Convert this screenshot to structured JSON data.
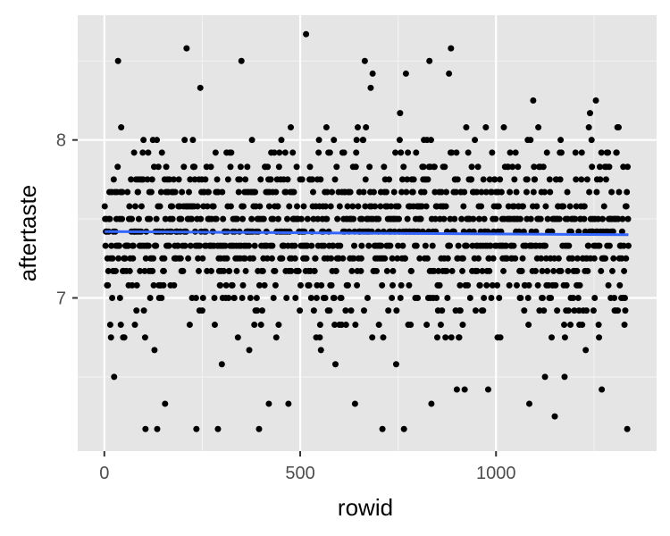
{
  "chart_data": {
    "type": "scatter",
    "xlabel": "rowid",
    "ylabel": "aftertaste",
    "xlim": [
      -68,
      1410
    ],
    "ylim": [
      6.03,
      8.79
    ],
    "x_ticks": [
      0,
      500,
      1000
    ],
    "x_tick_labels": [
      "0",
      "500",
      "1000"
    ],
    "y_ticks": [
      7,
      8
    ],
    "y_tick_labels": [
      "7",
      "8"
    ],
    "x_minor_ticks": [
      250,
      750,
      1250
    ],
    "y_minor_ticks": [
      6.5,
      7.5,
      8.5
    ],
    "grid": true,
    "legend": "none",
    "point_count": 1338,
    "y_levels": [
      6.17,
      6.25,
      6.33,
      6.42,
      6.5,
      6.58,
      6.67,
      6.75,
      6.83,
      6.92,
      7.0,
      7.08,
      7.17,
      7.25,
      7.33,
      7.42,
      7.5,
      7.58,
      7.67,
      7.75,
      7.83,
      7.92,
      8.0,
      8.08,
      8.17,
      8.25,
      8.33,
      8.42,
      8.5,
      8.58,
      8.67
    ],
    "highlighted_points": [
      {
        "x": 25,
        "y": 6.5
      },
      {
        "x": 35,
        "y": 8.5
      },
      {
        "x": 105,
        "y": 6.17
      },
      {
        "x": 135,
        "y": 6.17
      },
      {
        "x": 155,
        "y": 6.33
      },
      {
        "x": 210,
        "y": 8.58
      },
      {
        "x": 235,
        "y": 6.17
      },
      {
        "x": 245,
        "y": 8.33
      },
      {
        "x": 290,
        "y": 6.17
      },
      {
        "x": 300,
        "y": 6.58
      },
      {
        "x": 350,
        "y": 8.5
      },
      {
        "x": 395,
        "y": 6.17
      },
      {
        "x": 420,
        "y": 6.33
      },
      {
        "x": 470,
        "y": 6.33
      },
      {
        "x": 515,
        "y": 8.67
      },
      {
        "x": 590,
        "y": 6.58
      },
      {
        "x": 640,
        "y": 6.33
      },
      {
        "x": 665,
        "y": 8.5
      },
      {
        "x": 680,
        "y": 8.33
      },
      {
        "x": 685,
        "y": 8.42
      },
      {
        "x": 710,
        "y": 6.17
      },
      {
        "x": 745,
        "y": 6.58
      },
      {
        "x": 755,
        "y": 8.17
      },
      {
        "x": 765,
        "y": 6.17
      },
      {
        "x": 770,
        "y": 8.42
      },
      {
        "x": 830,
        "y": 8.5
      },
      {
        "x": 835,
        "y": 6.33
      },
      {
        "x": 880,
        "y": 8.42
      },
      {
        "x": 885,
        "y": 8.58
      },
      {
        "x": 900,
        "y": 6.42
      },
      {
        "x": 920,
        "y": 6.42
      },
      {
        "x": 980,
        "y": 6.42
      },
      {
        "x": 1020,
        "y": 8.08
      },
      {
        "x": 1085,
        "y": 6.33
      },
      {
        "x": 1095,
        "y": 8.25
      },
      {
        "x": 1125,
        "y": 6.5
      },
      {
        "x": 1150,
        "y": 6.25
      },
      {
        "x": 1175,
        "y": 6.5
      },
      {
        "x": 1240,
        "y": 8.17
      },
      {
        "x": 1255,
        "y": 8.25
      },
      {
        "x": 1270,
        "y": 6.42
      },
      {
        "x": 1310,
        "y": 8.08
      },
      {
        "x": 1335,
        "y": 6.17
      }
    ],
    "trend_line": {
      "x": [
        1,
        1338
      ],
      "y": [
        7.42,
        7.4
      ],
      "color": "#3366ff"
    },
    "colors": {
      "panel": "#e5e5e5",
      "grid_major": "#ffffff",
      "point": "#000000",
      "trend": "#3366ff",
      "tick_text": "#4d4d4d"
    }
  }
}
